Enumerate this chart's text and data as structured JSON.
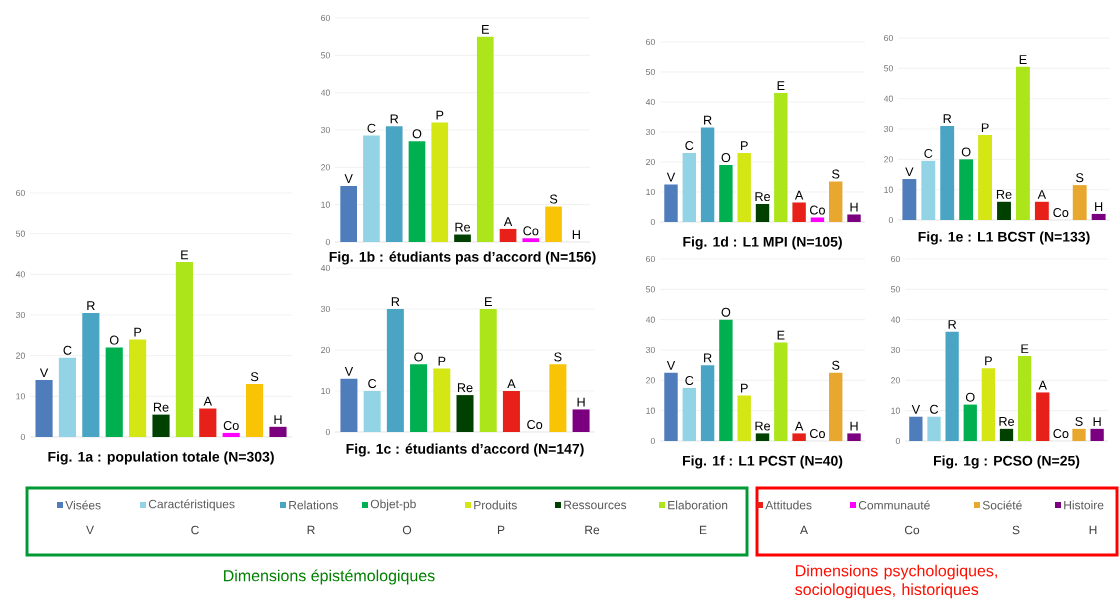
{
  "chart_data": [
    {
      "type": "bar",
      "title": "Fig. 1a : population totale (N=303)",
      "categories": [
        "V",
        "C",
        "R",
        "O",
        "P",
        "Re",
        "E",
        "A",
        "Co",
        "S",
        "H"
      ],
      "values": [
        14,
        19.5,
        30.5,
        22,
        24,
        5.5,
        43,
        7,
        1,
        13,
        2.5
      ],
      "colors": [
        "#4f7cba",
        "#93d3e6",
        "#4aa5c5",
        "#00b050",
        "#d4e614",
        "#004000",
        "#ace51a",
        "#e8201a",
        "#ff00ff",
        "#f9c406",
        "#7b0080"
      ],
      "ylim": [
        0,
        60
      ],
      "yticks": [
        0,
        10,
        20,
        30,
        40,
        50,
        60
      ],
      "grid": "y"
    },
    {
      "type": "bar",
      "title": "Fig. 1b : étudiants pas d’accord (N=156)",
      "categories": [
        "V",
        "C",
        "R",
        "O",
        "P",
        "Re",
        "E",
        "A",
        "Co",
        "S",
        "H"
      ],
      "values": [
        15,
        28.5,
        31,
        27,
        32,
        2,
        55,
        3.5,
        1,
        9.5,
        0
      ],
      "colors": [
        "#4f7cba",
        "#93d3e6",
        "#4aa5c5",
        "#00b050",
        "#d4e614",
        "#004000",
        "#ace51a",
        "#e8201a",
        "#ff00ff",
        "#f9c406",
        "#7b0080"
      ],
      "ylim": [
        0,
        60
      ],
      "yticks": [
        0,
        10,
        20,
        30,
        40,
        50,
        60
      ],
      "grid": "y"
    },
    {
      "type": "bar",
      "title": "Fig. 1c : étudiants d’accord (N=147)",
      "categories": [
        "V",
        "C",
        "R",
        "O",
        "P",
        "Re",
        "E",
        "A",
        "Co",
        "S",
        "H"
      ],
      "values": [
        13,
        10,
        30,
        16.5,
        15.5,
        9,
        30,
        10,
        0,
        16.5,
        5.5
      ],
      "colors": [
        "#4f7cba",
        "#93d3e6",
        "#4aa5c5",
        "#00b050",
        "#d4e614",
        "#004000",
        "#ace51a",
        "#e8201a",
        "#ff00ff",
        "#f9c406",
        "#7b0080"
      ],
      "ylim": [
        0,
        40
      ],
      "yticks": [
        0,
        10,
        20,
        30,
        40
      ],
      "grid": "y"
    },
    {
      "type": "bar",
      "title": "Fig. 1d : L1 MPI (N=105)",
      "categories": [
        "V",
        "C",
        "R",
        "O",
        "P",
        "Re",
        "E",
        "A",
        "Co",
        "S",
        "H"
      ],
      "values": [
        12.5,
        23,
        31.5,
        19,
        23,
        6,
        43,
        6.5,
        1.5,
        13.5,
        2.5
      ],
      "colors": [
        "#4f7cba",
        "#93d3e6",
        "#4aa5c5",
        "#00b050",
        "#d4e614",
        "#004000",
        "#ace51a",
        "#e8201a",
        "#ff00ff",
        "#e8a830",
        "#7b0080"
      ],
      "ylim": [
        0,
        60
      ],
      "yticks": [
        0,
        10,
        20,
        30,
        40,
        50,
        60
      ],
      "grid": "y"
    },
    {
      "type": "bar",
      "title": "Fig. 1e : L1 BCST (N=133)",
      "categories": [
        "V",
        "C",
        "R",
        "O",
        "P",
        "Re",
        "E",
        "A",
        "Co",
        "S",
        "H"
      ],
      "values": [
        13.5,
        19.5,
        31,
        20,
        28,
        6,
        50.5,
        6,
        0,
        11.5,
        2
      ],
      "colors": [
        "#4f7cba",
        "#93d3e6",
        "#4aa5c5",
        "#00b050",
        "#d4e614",
        "#004000",
        "#ace51a",
        "#e8201a",
        "#ff00ff",
        "#e8a830",
        "#7b0080"
      ],
      "ylim": [
        0,
        60
      ],
      "yticks": [
        0,
        10,
        20,
        30,
        40,
        50,
        60
      ],
      "grid": "y"
    },
    {
      "type": "bar",
      "title": "Fig. 1f : L1 PCST (N=40)",
      "categories": [
        "V",
        "C",
        "R",
        "O",
        "P",
        "Re",
        "E",
        "A",
        "Co",
        "S",
        "H"
      ],
      "values": [
        22.5,
        17.5,
        25,
        40,
        15,
        2.5,
        32.5,
        2.5,
        0,
        22.5,
        2.5
      ],
      "colors": [
        "#4f7cba",
        "#93d3e6",
        "#4aa5c5",
        "#00b050",
        "#d4e614",
        "#004000",
        "#ace51a",
        "#e8201a",
        "#ff00ff",
        "#e8a830",
        "#7b0080"
      ],
      "ylim": [
        0,
        60
      ],
      "yticks": [
        0,
        10,
        20,
        30,
        40,
        50,
        60
      ],
      "grid": "y"
    },
    {
      "type": "bar",
      "title": "Fig. 1g : PCSO (N=25)",
      "categories": [
        "V",
        "C",
        "R",
        "O",
        "P",
        "Re",
        "E",
        "A",
        "Co",
        "S",
        "H"
      ],
      "values": [
        8,
        8,
        36,
        12,
        24,
        4,
        28,
        16,
        0,
        4,
        4
      ],
      "colors": [
        "#4f7cba",
        "#93d3e6",
        "#4aa5c5",
        "#00b050",
        "#d4e614",
        "#004000",
        "#ace51a",
        "#e8201a",
        "#ff00ff",
        "#e8a830",
        "#7b0080"
      ],
      "ylim": [
        0,
        60
      ],
      "yticks": [
        0,
        10,
        20,
        30,
        40,
        50,
        60
      ],
      "grid": "y"
    },
    {
      "type": "other",
      "categories": [
        "Visées",
        "Caractéristiques",
        "Relations",
        "Objet-pb",
        "Produits",
        "Ressources",
        "Elaboration",
        "Attitudes",
        "Communauté",
        "Société",
        "Histoire"
      ],
      "colors": [
        "#4f7cba",
        "#93d3e6",
        "#4aa5c5",
        "#00b050",
        "#d4e614",
        "#004000",
        "#ace51a",
        "#e8201a",
        "#ff00ff",
        "#e8a830",
        "#7b0080"
      ],
      "annotations": [
        "V",
        "C",
        "R",
        "O",
        "P",
        "Re",
        "E",
        "A",
        "Co",
        "S",
        "H",
        "Dimensions épistémologiques",
        "Dimensions psychologiques, sociologiques, historiques"
      ]
    }
  ]
}
